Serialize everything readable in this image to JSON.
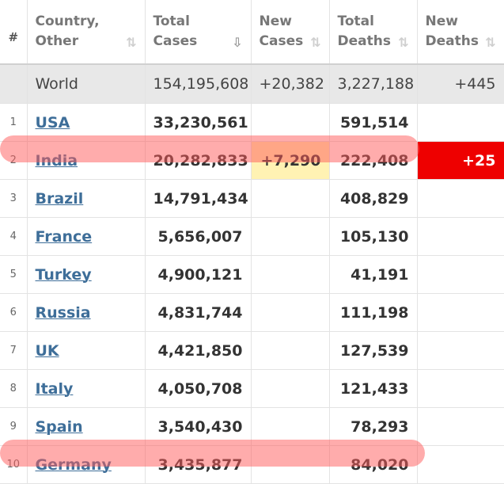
{
  "headers": [
    {
      "line1": "#",
      "line2": ""
    },
    {
      "line1": "Country,",
      "line2": "Other",
      "sort": "⇅"
    },
    {
      "line1": "Total",
      "line2": "Cases",
      "sort": "⇩"
    },
    {
      "line1": "New",
      "line2": "Cases",
      "sort": "⇅"
    },
    {
      "line1": "Total",
      "line2": "Deaths",
      "sort": "⇅"
    },
    {
      "line1": "New",
      "line2": "Deaths",
      "sort": "⇅"
    }
  ],
  "world": {
    "country": "World",
    "total_cases": "154,195,608",
    "new_cases": "+20,382",
    "total_deaths": "3,227,188",
    "new_deaths": "+445"
  },
  "rows": [
    {
      "rank": "1",
      "country": "USA",
      "total_cases": "33,230,561",
      "new_cases": "",
      "total_deaths": "591,514",
      "new_deaths": ""
    },
    {
      "rank": "2",
      "country": "India",
      "total_cases": "20,282,833",
      "new_cases": "+7,290",
      "total_deaths": "222,408",
      "new_deaths": "+25"
    },
    {
      "rank": "3",
      "country": "Brazil",
      "total_cases": "14,791,434",
      "new_cases": "",
      "total_deaths": "408,829",
      "new_deaths": ""
    },
    {
      "rank": "4",
      "country": "France",
      "total_cases": "5,656,007",
      "new_cases": "",
      "total_deaths": "105,130",
      "new_deaths": ""
    },
    {
      "rank": "5",
      "country": "Turkey",
      "total_cases": "4,900,121",
      "new_cases": "",
      "total_deaths": "41,191",
      "new_deaths": ""
    },
    {
      "rank": "6",
      "country": "Russia",
      "total_cases": "4,831,744",
      "new_cases": "",
      "total_deaths": "111,198",
      "new_deaths": ""
    },
    {
      "rank": "7",
      "country": "UK",
      "total_cases": "4,421,850",
      "new_cases": "",
      "total_deaths": "127,539",
      "new_deaths": ""
    },
    {
      "rank": "8",
      "country": "Italy",
      "total_cases": "4,050,708",
      "new_cases": "",
      "total_deaths": "121,433",
      "new_deaths": ""
    },
    {
      "rank": "9",
      "country": "Spain",
      "total_cases": "3,540,430",
      "new_cases": "",
      "total_deaths": "78,293",
      "new_deaths": ""
    },
    {
      "rank": "10",
      "country": "Germany",
      "total_cases": "3,435,877",
      "new_cases": "",
      "total_deaths": "84,020",
      "new_deaths": ""
    }
  ],
  "colors": {
    "link": "#3e6e99",
    "highlight_new_cases": "#fff2b3",
    "new_deaths_red": "#ee0000",
    "annotation_band": "#ff5a5a"
  }
}
